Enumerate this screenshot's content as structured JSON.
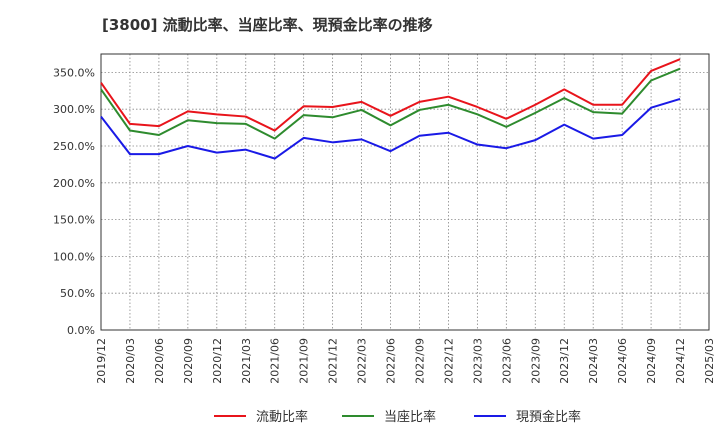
{
  "chart_data": {
    "type": "line",
    "title": "[3800]  流動比率、当座比率、現預金比率の推移",
    "xlabel": "",
    "ylabel": "",
    "x_ticks": [
      "2019/12",
      "2020/03",
      "2020/06",
      "2020/09",
      "2020/12",
      "2021/03",
      "2021/06",
      "2021/09",
      "2021/12",
      "2022/03",
      "2022/06",
      "2022/09",
      "2022/12",
      "2023/03",
      "2023/06",
      "2023/09",
      "2023/12",
      "2024/03",
      "2024/06",
      "2024/09",
      "2024/12",
      "2025/03"
    ],
    "y_ticks": [
      "0.0%",
      "50.0%",
      "100.0%",
      "150.0%",
      "200.0%",
      "250.0%",
      "300.0%",
      "350.0%"
    ],
    "ylim": [
      0,
      375
    ],
    "grid": true,
    "legend_position": "bottom-center",
    "categories": [
      "2019/12",
      "2020/03",
      "2020/06",
      "2020/09",
      "2020/12",
      "2021/03",
      "2021/06",
      "2021/09",
      "2021/12",
      "2022/03",
      "2022/06",
      "2022/09",
      "2022/12",
      "2023/03",
      "2023/06",
      "2023/09",
      "2023/12",
      "2024/03",
      "2024/06",
      "2024/09",
      "2024/12"
    ],
    "series": [
      {
        "name": "流動比率",
        "color": "#e8141b",
        "values": [
          336,
          280,
          277,
          297,
          293,
          290,
          271,
          304,
          303,
          310,
          291,
          310,
          317,
          303,
          287,
          306,
          327,
          306,
          306,
          352,
          368
        ]
      },
      {
        "name": "当座比率",
        "color": "#2e8b2e",
        "values": [
          327,
          271,
          265,
          285,
          281,
          280,
          260,
          292,
          289,
          299,
          278,
          299,
          306,
          293,
          276,
          295,
          315,
          296,
          294,
          339,
          355
        ]
      },
      {
        "name": "現預金比率",
        "color": "#1a1ae6",
        "values": [
          290,
          239,
          239,
          250,
          241,
          245,
          233,
          261,
          255,
          259,
          243,
          264,
          268,
          252,
          247,
          258,
          279,
          260,
          265,
          302,
          314
        ]
      }
    ]
  }
}
